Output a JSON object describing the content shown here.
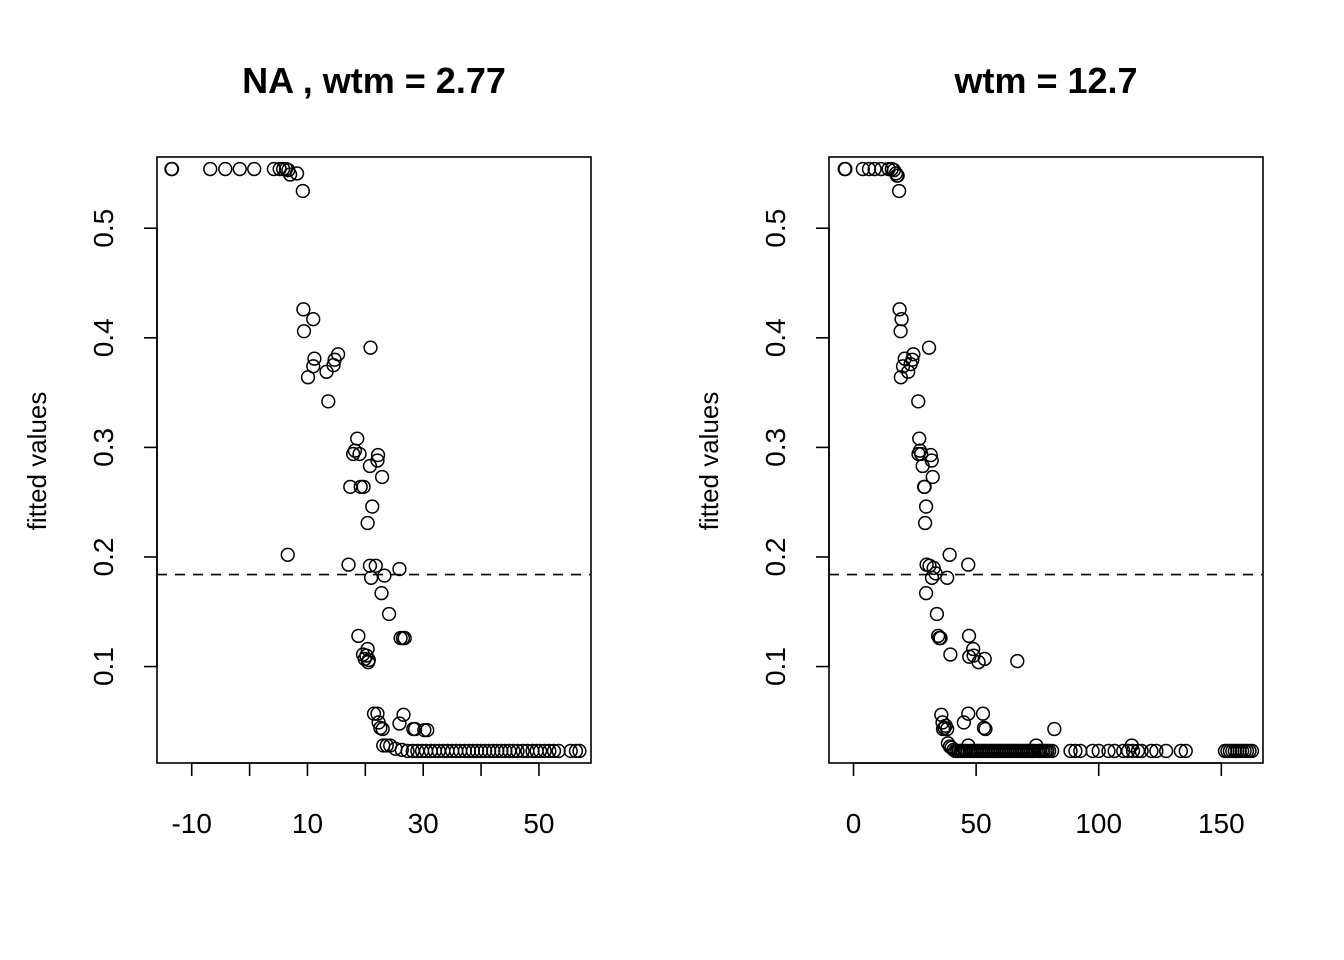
{
  "chart_data": [
    {
      "type": "scatter",
      "title": "NA , wtm =  2.77",
      "ylabel": "fitted values",
      "xlim": [
        -16,
        59
      ],
      "ylim": [
        0.012,
        0.565
      ],
      "x_ticks": [
        -10,
        0,
        10,
        20,
        30,
        40,
        50
      ],
      "x_tick_labels": [
        "-10",
        "",
        "10",
        "",
        "30",
        "",
        "50"
      ],
      "y_ticks": [
        0.1,
        0.2,
        0.3,
        0.4,
        0.5
      ],
      "y_tick_labels": [
        "0.1",
        "0.2",
        "0.3",
        "0.4",
        "0.5"
      ],
      "reference_line_y": 0.184,
      "marker": "open-circle",
      "points": [
        [
          -13.5,
          0.554
        ],
        [
          -13.4,
          0.554
        ],
        [
          -6.8,
          0.554
        ],
        [
          -4.2,
          0.554
        ],
        [
          -1.7,
          0.554
        ],
        [
          0.8,
          0.554
        ],
        [
          4.2,
          0.554
        ],
        [
          5.2,
          0.554
        ],
        [
          5.8,
          0.554
        ],
        [
          6.3,
          0.554
        ],
        [
          6.7,
          0.553
        ],
        [
          7.0,
          0.549
        ],
        [
          8.2,
          0.55
        ],
        [
          9.2,
          0.534
        ],
        [
          9.3,
          0.426
        ],
        [
          9.4,
          0.406
        ],
        [
          11.0,
          0.417
        ],
        [
          10.1,
          0.364
        ],
        [
          11.0,
          0.374
        ],
        [
          11.2,
          0.381
        ],
        [
          13.3,
          0.369
        ],
        [
          13.6,
          0.342
        ],
        [
          14.5,
          0.375
        ],
        [
          14.7,
          0.38
        ],
        [
          15.3,
          0.385
        ],
        [
          20.9,
          0.391
        ],
        [
          17.4,
          0.264
        ],
        [
          17.9,
          0.294
        ],
        [
          18.2,
          0.297
        ],
        [
          18.6,
          0.308
        ],
        [
          19.0,
          0.294
        ],
        [
          19.2,
          0.264
        ],
        [
          19.7,
          0.264
        ],
        [
          20.8,
          0.283
        ],
        [
          21.2,
          0.246
        ],
        [
          20.4,
          0.231
        ],
        [
          22.2,
          0.293
        ],
        [
          22.1,
          0.288
        ],
        [
          22.9,
          0.273
        ],
        [
          6.6,
          0.202
        ],
        [
          17.1,
          0.193
        ],
        [
          20.8,
          0.192
        ],
        [
          21.8,
          0.192
        ],
        [
          21.0,
          0.181
        ],
        [
          23.3,
          0.183
        ],
        [
          25.9,
          0.189
        ],
        [
          22.8,
          0.167
        ],
        [
          24.1,
          0.148
        ],
        [
          18.8,
          0.128
        ],
        [
          26.1,
          0.126
        ],
        [
          26.5,
          0.126
        ],
        [
          26.8,
          0.126
        ],
        [
          19.6,
          0.111
        ],
        [
          19.9,
          0.107
        ],
        [
          20.2,
          0.11
        ],
        [
          20.4,
          0.116
        ],
        [
          20.6,
          0.106
        ],
        [
          20.5,
          0.104
        ],
        [
          21.5,
          0.057
        ],
        [
          22.1,
          0.057
        ],
        [
          22.3,
          0.049
        ],
        [
          22.6,
          0.044
        ],
        [
          23.0,
          0.043
        ],
        [
          26.6,
          0.056
        ],
        [
          25.9,
          0.048
        ],
        [
          28.3,
          0.043
        ],
        [
          28.6,
          0.043
        ],
        [
          30.2,
          0.042
        ],
        [
          30.7,
          0.042
        ],
        [
          23.1,
          0.028
        ],
        [
          23.7,
          0.028
        ],
        [
          24.3,
          0.028
        ],
        [
          25.2,
          0.025
        ],
        [
          26.3,
          0.024
        ],
        [
          27.3,
          0.023
        ],
        [
          28.2,
          0.023
        ],
        [
          29.0,
          0.023
        ],
        [
          29.8,
          0.023
        ],
        [
          30.5,
          0.023
        ],
        [
          31.3,
          0.023
        ],
        [
          32.0,
          0.023
        ],
        [
          32.7,
          0.023
        ],
        [
          33.5,
          0.023
        ],
        [
          34.2,
          0.023
        ],
        [
          35.0,
          0.023
        ],
        [
          35.7,
          0.023
        ],
        [
          36.4,
          0.023
        ],
        [
          37.2,
          0.023
        ],
        [
          37.9,
          0.023
        ],
        [
          38.6,
          0.023
        ],
        [
          39.3,
          0.023
        ],
        [
          40.0,
          0.023
        ],
        [
          40.7,
          0.023
        ],
        [
          41.4,
          0.023
        ],
        [
          42.1,
          0.023
        ],
        [
          42.8,
          0.023
        ],
        [
          43.5,
          0.023
        ],
        [
          44.2,
          0.023
        ],
        [
          44.9,
          0.023
        ],
        [
          45.6,
          0.023
        ],
        [
          46.3,
          0.023
        ],
        [
          47.2,
          0.023
        ],
        [
          48.0,
          0.023
        ],
        [
          48.9,
          0.023
        ],
        [
          49.6,
          0.023
        ],
        [
          50.2,
          0.023
        ],
        [
          51.0,
          0.023
        ],
        [
          51.8,
          0.023
        ],
        [
          52.6,
          0.023
        ],
        [
          53.4,
          0.023
        ],
        [
          55.5,
          0.023
        ],
        [
          56.4,
          0.023
        ],
        [
          57.0,
          0.023
        ]
      ]
    },
    {
      "type": "scatter",
      "title": "wtm =  12.7",
      "ylabel": "fitted values",
      "xlim": [
        -10,
        167
      ],
      "ylim": [
        0.012,
        0.565
      ],
      "x_ticks": [
        0,
        50,
        100,
        150
      ],
      "x_tick_labels": [
        "0",
        "50",
        "100",
        "150"
      ],
      "y_ticks": [
        0.1,
        0.2,
        0.3,
        0.4,
        0.5
      ],
      "y_tick_labels": [
        "0.1",
        "0.2",
        "0.3",
        "0.4",
        "0.5"
      ],
      "reference_line_y": 0.184,
      "marker": "open-circle",
      "points": [
        [
          -3.6,
          0.554
        ],
        [
          -3.3,
          0.554
        ],
        [
          3.8,
          0.554
        ],
        [
          6.3,
          0.554
        ],
        [
          8.6,
          0.554
        ],
        [
          11.3,
          0.554
        ],
        [
          14.3,
          0.554
        ],
        [
          15.6,
          0.554
        ],
        [
          16.5,
          0.553
        ],
        [
          17.3,
          0.55
        ],
        [
          17.7,
          0.548
        ],
        [
          18.0,
          0.548
        ],
        [
          18.6,
          0.534
        ],
        [
          18.8,
          0.426
        ],
        [
          19.2,
          0.406
        ],
        [
          19.6,
          0.417
        ],
        [
          19.3,
          0.364
        ],
        [
          20.2,
          0.374
        ],
        [
          20.9,
          0.381
        ],
        [
          22.3,
          0.369
        ],
        [
          23.3,
          0.376
        ],
        [
          24.0,
          0.38
        ],
        [
          24.4,
          0.385
        ],
        [
          26.4,
          0.342
        ],
        [
          30.8,
          0.391
        ],
        [
          26.8,
          0.308
        ],
        [
          26.5,
          0.294
        ],
        [
          27.1,
          0.297
        ],
        [
          27.6,
          0.294
        ],
        [
          28.2,
          0.283
        ],
        [
          28.8,
          0.264
        ],
        [
          29.0,
          0.264
        ],
        [
          29.6,
          0.246
        ],
        [
          29.2,
          0.231
        ],
        [
          31.5,
          0.293
        ],
        [
          31.9,
          0.288
        ],
        [
          32.3,
          0.273
        ],
        [
          39.2,
          0.202
        ],
        [
          29.8,
          0.193
        ],
        [
          31.0,
          0.192
        ],
        [
          32.7,
          0.19
        ],
        [
          32.0,
          0.181
        ],
        [
          33.5,
          0.185
        ],
        [
          38.2,
          0.181
        ],
        [
          29.6,
          0.167
        ],
        [
          34.0,
          0.148
        ],
        [
          34.5,
          0.128
        ],
        [
          35.0,
          0.126
        ],
        [
          35.5,
          0.126
        ],
        [
          39.5,
          0.111
        ],
        [
          46.8,
          0.193
        ],
        [
          47.1,
          0.128
        ],
        [
          47.2,
          0.109
        ],
        [
          48.8,
          0.116
        ],
        [
          49.0,
          0.11
        ],
        [
          51.0,
          0.104
        ],
        [
          53.5,
          0.107
        ],
        [
          66.8,
          0.105
        ],
        [
          35.8,
          0.056
        ],
        [
          36.3,
          0.049
        ],
        [
          36.5,
          0.043
        ],
        [
          37.1,
          0.044
        ],
        [
          37.6,
          0.046
        ],
        [
          38.2,
          0.043
        ],
        [
          45.0,
          0.049
        ],
        [
          46.8,
          0.057
        ],
        [
          52.8,
          0.057
        ],
        [
          53.2,
          0.044
        ],
        [
          53.8,
          0.043
        ],
        [
          81.9,
          0.043
        ],
        [
          38.5,
          0.03
        ],
        [
          39.3,
          0.027
        ],
        [
          40.0,
          0.026
        ],
        [
          40.8,
          0.024
        ],
        [
          41.5,
          0.023
        ],
        [
          42.3,
          0.023
        ],
        [
          43.0,
          0.023
        ],
        [
          43.8,
          0.023
        ],
        [
          44.5,
          0.023
        ],
        [
          45.3,
          0.023
        ],
        [
          46.0,
          0.023
        ],
        [
          46.8,
          0.028
        ],
        [
          47.5,
          0.023
        ],
        [
          48.3,
          0.023
        ],
        [
          49.0,
          0.023
        ],
        [
          49.8,
          0.023
        ],
        [
          50.5,
          0.023
        ],
        [
          51.3,
          0.023
        ],
        [
          52.0,
          0.023
        ],
        [
          52.8,
          0.023
        ],
        [
          53.5,
          0.023
        ],
        [
          54.3,
          0.023
        ],
        [
          55.0,
          0.023
        ],
        [
          55.8,
          0.023
        ],
        [
          56.5,
          0.023
        ],
        [
          57.3,
          0.023
        ],
        [
          58.0,
          0.023
        ],
        [
          58.8,
          0.023
        ],
        [
          59.5,
          0.023
        ],
        [
          60.3,
          0.023
        ],
        [
          61.0,
          0.023
        ],
        [
          61.8,
          0.023
        ],
        [
          62.5,
          0.023
        ],
        [
          63.3,
          0.023
        ],
        [
          64.0,
          0.023
        ],
        [
          64.8,
          0.023
        ],
        [
          65.5,
          0.023
        ],
        [
          66.3,
          0.023
        ],
        [
          67.0,
          0.023
        ],
        [
          67.8,
          0.023
        ],
        [
          68.5,
          0.023
        ],
        [
          69.3,
          0.023
        ],
        [
          70.0,
          0.023
        ],
        [
          70.8,
          0.023
        ],
        [
          71.5,
          0.023
        ],
        [
          72.3,
          0.023
        ],
        [
          73.0,
          0.023
        ],
        [
          73.8,
          0.023
        ],
        [
          74.5,
          0.028
        ],
        [
          75.3,
          0.023
        ],
        [
          76.0,
          0.023
        ],
        [
          76.8,
          0.023
        ],
        [
          77.5,
          0.023
        ],
        [
          78.3,
          0.023
        ],
        [
          79.0,
          0.023
        ],
        [
          79.8,
          0.023
        ],
        [
          81.0,
          0.023
        ],
        [
          88.5,
          0.023
        ],
        [
          90.5,
          0.023
        ],
        [
          92.5,
          0.023
        ],
        [
          97.5,
          0.023
        ],
        [
          100.0,
          0.023
        ],
        [
          104.0,
          0.023
        ],
        [
          106.5,
          0.023
        ],
        [
          110.0,
          0.023
        ],
        [
          112.0,
          0.023
        ],
        [
          113.5,
          0.028
        ],
        [
          114.0,
          0.023
        ],
        [
          116.0,
          0.023
        ],
        [
          117.5,
          0.023
        ],
        [
          121.5,
          0.023
        ],
        [
          123.5,
          0.023
        ],
        [
          127.5,
          0.023
        ],
        [
          133.5,
          0.023
        ],
        [
          135.5,
          0.023
        ],
        [
          151.5,
          0.023
        ],
        [
          152.5,
          0.023
        ],
        [
          153.5,
          0.023
        ],
        [
          154.5,
          0.023
        ],
        [
          155.5,
          0.023
        ],
        [
          156.5,
          0.023
        ],
        [
          157.5,
          0.023
        ],
        [
          158.5,
          0.023
        ],
        [
          159.5,
          0.023
        ],
        [
          160.5,
          0.023
        ],
        [
          161.5,
          0.023
        ],
        [
          162.5,
          0.023
        ]
      ]
    }
  ]
}
